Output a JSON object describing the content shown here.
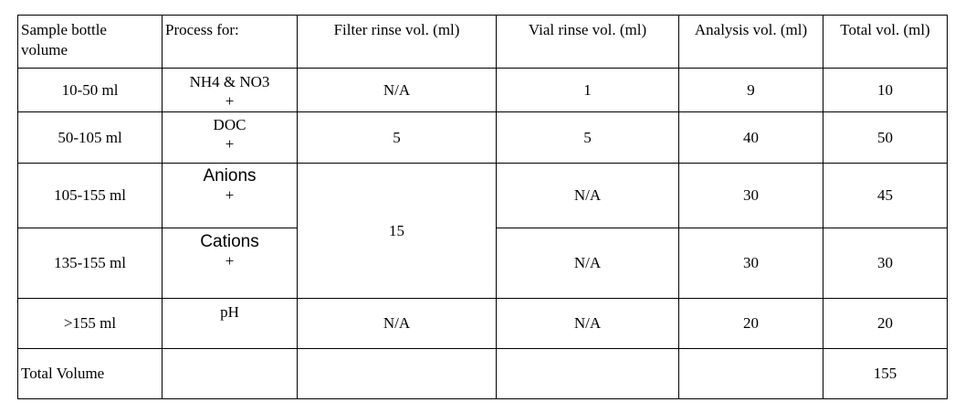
{
  "headers": {
    "bottle": [
      "Sample bottle",
      "volume"
    ],
    "process": "Process for:",
    "filter": "Filter rinse vol. (ml)",
    "vial": "Vial rinse vol. (ml)",
    "analysis": "Analysis vol. (ml)",
    "total": "Total vol. (ml)"
  },
  "rows": [
    {
      "bottle": "10-50 ml",
      "process": "NH4 & NO3",
      "plus": "+",
      "filter": "N/A",
      "vial": "1",
      "analysis": "9",
      "total": "10"
    },
    {
      "bottle": "50-105 ml",
      "process": "DOC",
      "plus": "+",
      "filter": "5",
      "vial": "5",
      "analysis": "40",
      "total": "50"
    },
    {
      "bottle": "105-155 ml",
      "process": "Anions",
      "plus": "+",
      "filter": "15",
      "vial": "N/A",
      "analysis": "30",
      "total": "45"
    },
    {
      "bottle": "135-155 ml",
      "process": "Cations",
      "plus": "+",
      "vial": "N/A",
      "analysis": "30",
      "total": "30"
    },
    {
      "bottle": ">155 ml",
      "process": "pH",
      "filter": "N/A",
      "vial": "N/A",
      "analysis": "20",
      "total": "20"
    }
  ],
  "footer": {
    "label": "Total Volume",
    "total": "155"
  }
}
